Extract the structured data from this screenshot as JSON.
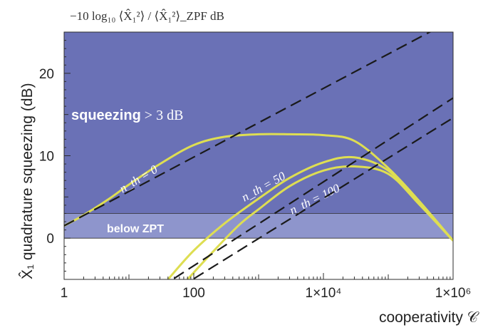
{
  "chart_data": {
    "type": "line",
    "title": "−10 log₁₀ ⟨X̂₁²⟩ / ⟨X̂₁²⟩_ZPF dB",
    "xlabel": "cooperativity 𝒞",
    "ylabel": "X̂₁ quadrature squeezing (dB)",
    "xscale": "log",
    "xlim": [
      1,
      1000000
    ],
    "ylim": [
      -5,
      25
    ],
    "x_ticks": [
      {
        "value": 1,
        "label": "1"
      },
      {
        "value": 100,
        "label": "100"
      },
      {
        "value": 10000,
        "label": "1×10⁴"
      },
      {
        "value": 1000000,
        "label": "1×10⁶"
      }
    ],
    "y_ticks": [
      {
        "value": 0,
        "label": "0"
      },
      {
        "value": 10,
        "label": "10"
      },
      {
        "value": 20,
        "label": "20"
      }
    ],
    "regions": [
      {
        "label": "squeezing > 3 dB",
        "y_from": 3,
        "y_to": 25,
        "color": "#6a71b6"
      },
      {
        "label": "below ZPT",
        "y_from": 0,
        "y_to": 3,
        "color": "#8e95cc"
      }
    ],
    "series": [
      {
        "name": "n_th = 0",
        "color": "#dede52",
        "x": [
          1,
          2,
          5,
          10,
          30,
          100,
          300,
          1000,
          3000,
          10000,
          30000,
          100000,
          300000,
          1000000
        ],
        "y": [
          1.5,
          2.8,
          4.8,
          6.5,
          9.0,
          11.3,
          12.3,
          12.6,
          12.6,
          12.5,
          11.8,
          8.5,
          4.5,
          -0.3
        ]
      },
      {
        "name": "n_th = 50",
        "color": "#dede52",
        "x": [
          40,
          100,
          300,
          1000,
          3000,
          10000,
          30000,
          100000,
          300000,
          1000000
        ],
        "y": [
          -5,
          -1.5,
          1.8,
          4.8,
          7.3,
          9.2,
          9.8,
          8.2,
          4.2,
          -0.3
        ]
      },
      {
        "name": "n_th = 100",
        "color": "#dede52",
        "x": [
          80,
          200,
          500,
          1000,
          3000,
          10000,
          30000,
          100000,
          300000,
          1000000
        ],
        "y": [
          -5,
          -1.6,
          1.6,
          3.5,
          6.3,
          8.2,
          8.7,
          7.8,
          4.1,
          -0.3
        ]
      }
    ],
    "asymptotes": [
      {
        "series": "n_th = 0",
        "x": [
          1,
          1000000
        ],
        "y": [
          1.5,
          26.5
        ]
      },
      {
        "series": "n_th = 50",
        "x": [
          30,
          1000000
        ],
        "y": [
          -6,
          17
        ]
      },
      {
        "series": "n_th = 100",
        "x": [
          60,
          1000000
        ],
        "y": [
          -6,
          14.6
        ]
      }
    ],
    "annotations": [
      {
        "text": "squeezing > 3 dB",
        "part1": "squeezing",
        "part2": "> 3 dB"
      },
      {
        "text": "below ZPT"
      },
      {
        "text": "n_th = 0"
      },
      {
        "text": "n_th = 50"
      },
      {
        "text": "n_th = 100"
      }
    ]
  }
}
